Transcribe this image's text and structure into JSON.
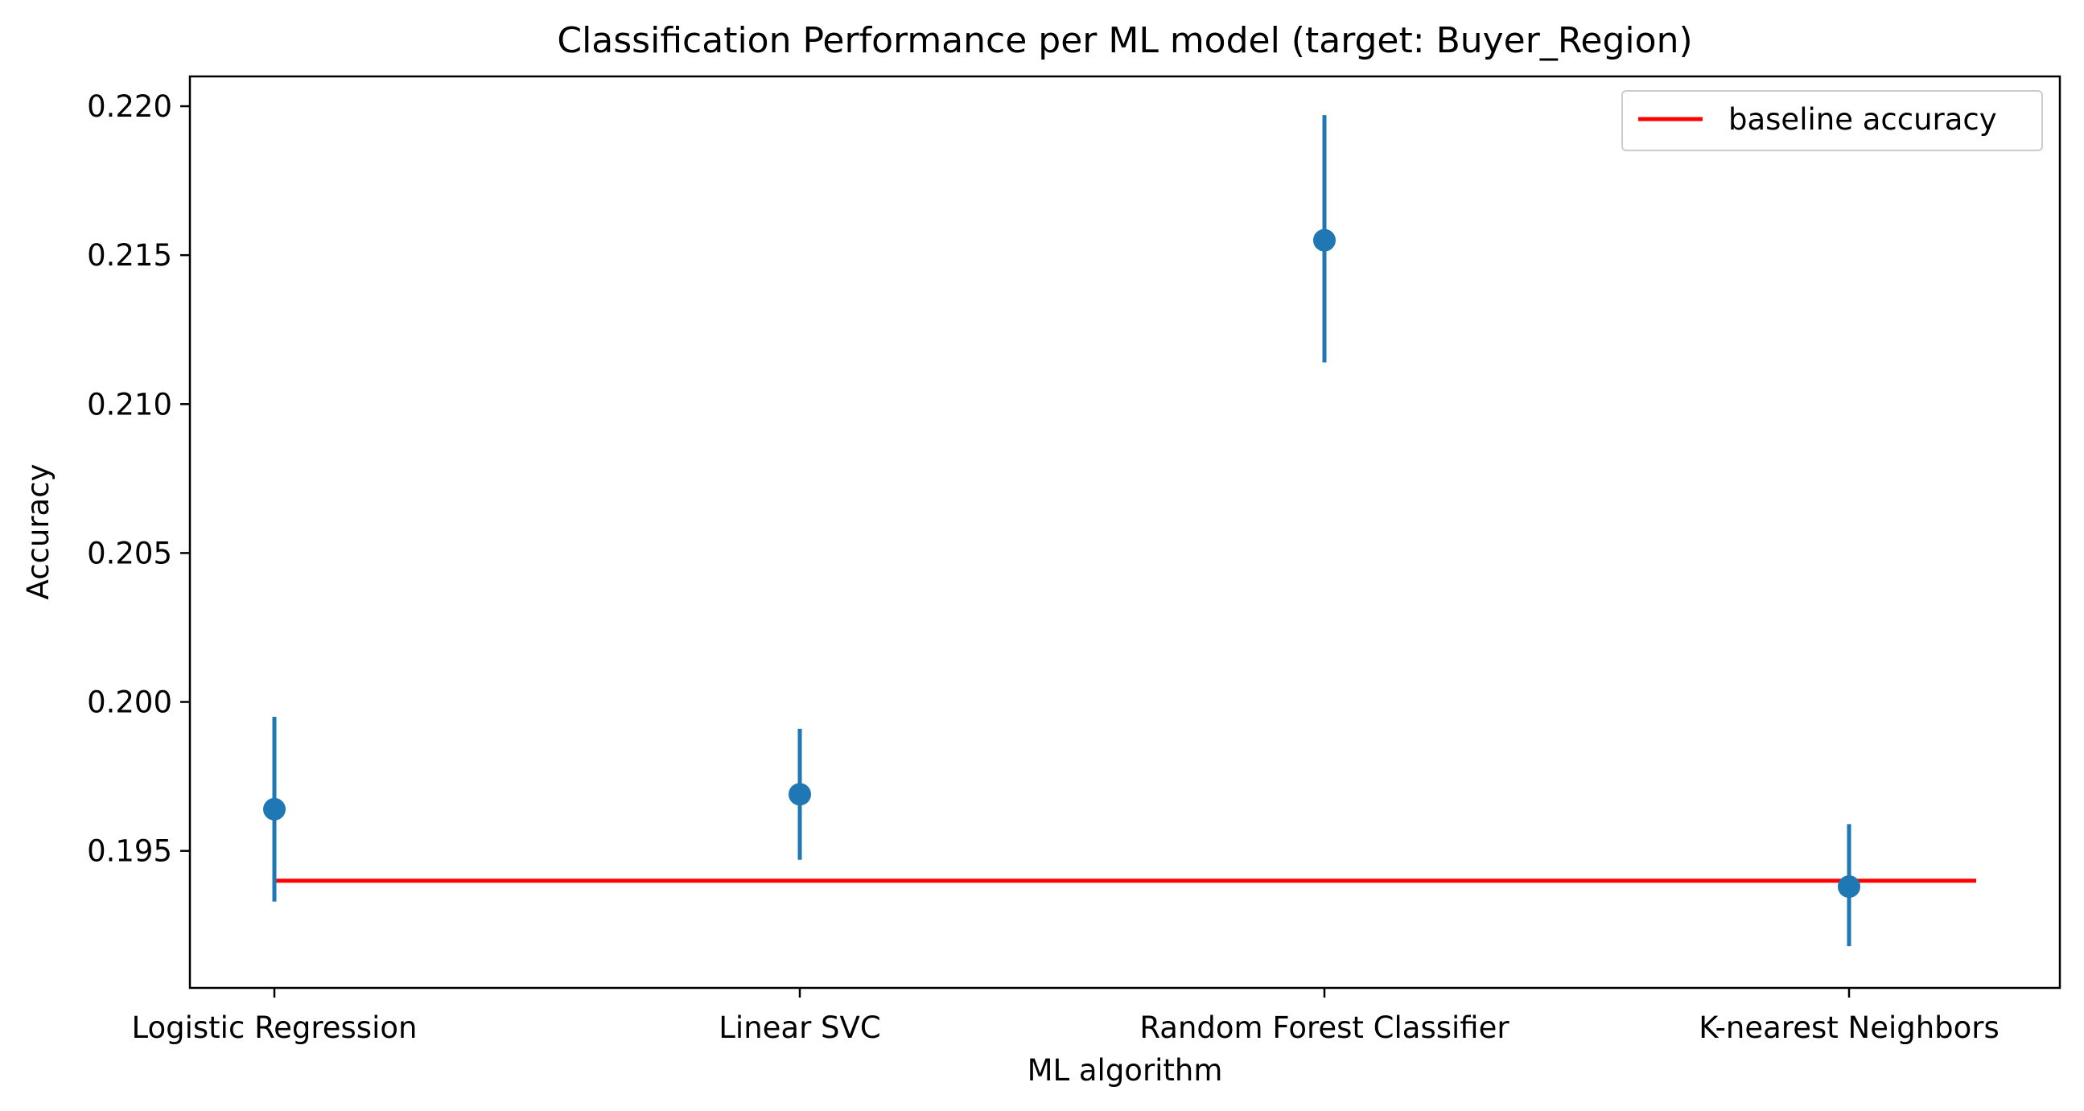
{
  "chart_data": {
    "type": "scatter",
    "title": "Classification Performance per ML model (target: Buyer_Region)",
    "xlabel": "ML algorithm",
    "ylabel": "Accuracy",
    "categories": [
      "Logistic Regression",
      "Linear SVC",
      "Random Forest Classifier",
      "K-nearest Neighbors"
    ],
    "series": [
      {
        "values": [
          0.1964,
          0.1969,
          0.2155,
          0.1938
        ],
        "error_low": [
          0.1933,
          0.1947,
          0.2114,
          0.1918
        ],
        "error_high": [
          0.1995,
          0.1991,
          0.2197,
          0.1959
        ],
        "color": "#1f77b4"
      }
    ],
    "baseline": {
      "name": "baseline accuracy",
      "value": 0.194,
      "color": "#ff0000"
    },
    "ylim": [
      0.1904,
      0.221
    ],
    "yticks": [
      "0.195",
      "0.200",
      "0.205",
      "0.210",
      "0.215",
      "0.220"
    ],
    "legend_position": "top-right",
    "grid": false
  }
}
